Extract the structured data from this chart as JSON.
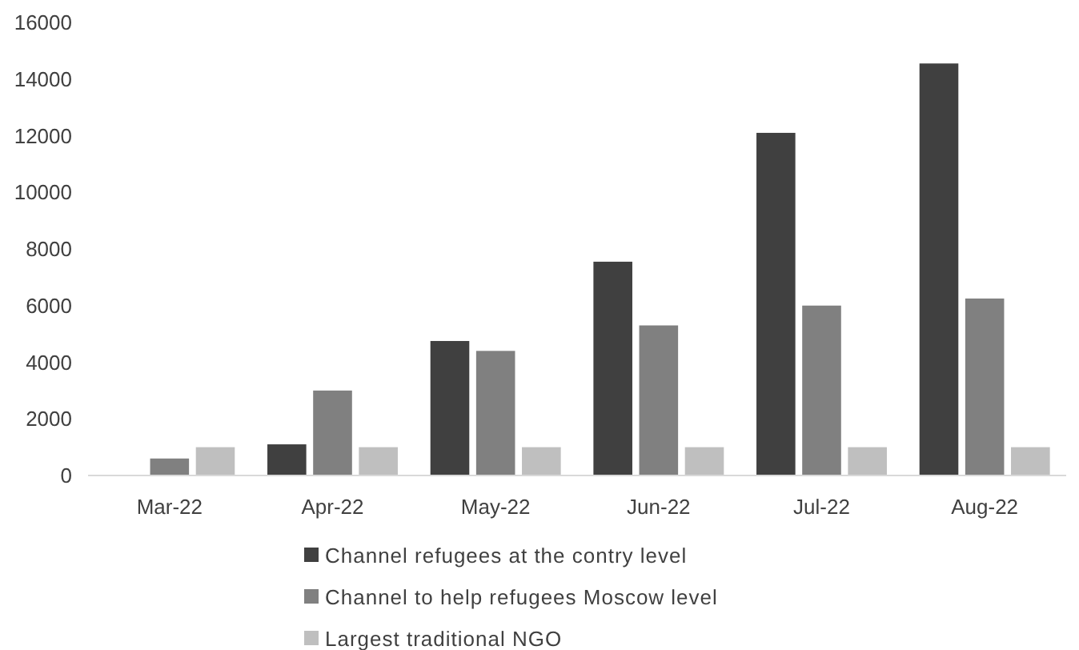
{
  "chart_data": {
    "type": "bar",
    "categories": [
      "Mar-22",
      "Apr-22",
      "May-22",
      "Jun-22",
      "Jul-22",
      "Aug-22"
    ],
    "series": [
      {
        "name": "Channel refugees at the contry level",
        "color": "#404040",
        "values": [
          0,
          1100,
          4750,
          7550,
          12100,
          14550
        ]
      },
      {
        "name": "Channel to help refugees Moscow level",
        "color": "#808080",
        "values": [
          600,
          3000,
          4400,
          5300,
          6000,
          6250
        ]
      },
      {
        "name": "Largest traditional NGO",
        "color": "#bfbfbf",
        "values": [
          1000,
          1000,
          1000,
          1000,
          1000,
          1000
        ]
      }
    ],
    "ylim": [
      0,
      16000
    ],
    "yticks": [
      0,
      2000,
      4000,
      6000,
      8000,
      10000,
      12000,
      14000,
      16000
    ],
    "grid": false,
    "legend": "bottom"
  }
}
